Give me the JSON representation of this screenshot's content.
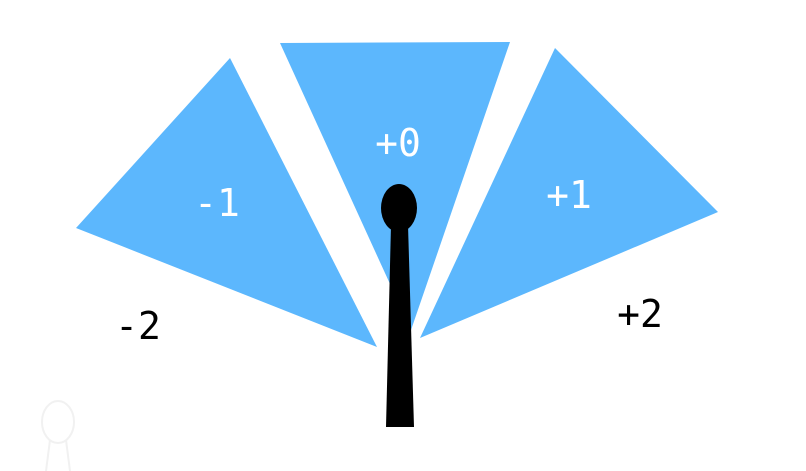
{
  "wedges": [
    {
      "label": "-1"
    },
    {
      "label": "+0"
    },
    {
      "label": "+1"
    }
  ],
  "outer_labels": [
    {
      "label": "-2"
    },
    {
      "label": "+2"
    }
  ],
  "colors": {
    "wedge": "#5cb7fd",
    "pointer": "#000000",
    "wedge_text": "#ffffff",
    "outer_text": "#000000"
  },
  "icons": {
    "pointer": "pointer-stick-icon",
    "ghost_pointer": "ghost-pointer-icon"
  }
}
